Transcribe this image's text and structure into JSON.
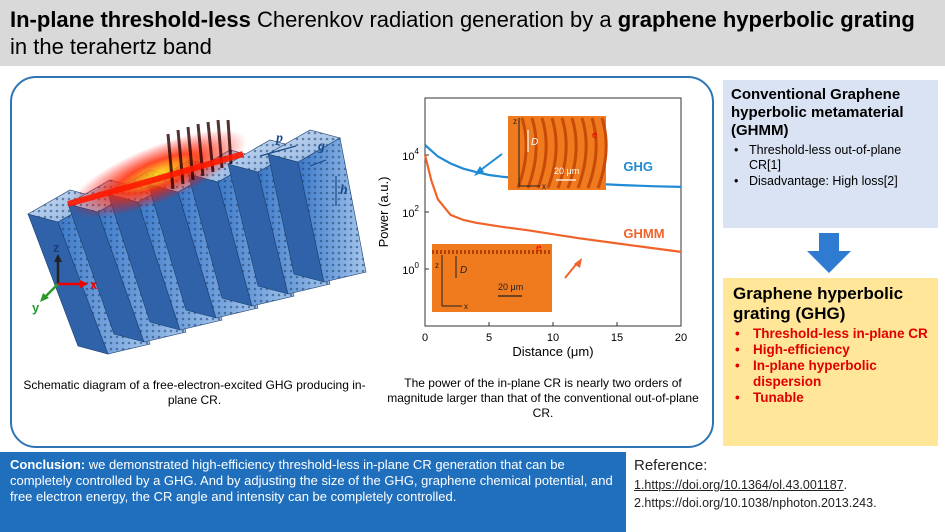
{
  "title": {
    "bold1": "In-plane threshold-less",
    "normal1": " Cherenkov radiation generation by a ",
    "bold2": "graphene hyperbolic grating",
    "normal2": " in the terahertz band"
  },
  "figure_left": {
    "labels": {
      "p": "p",
      "g": "g",
      "h": "h",
      "z": "z",
      "x": "x",
      "y": "y"
    },
    "caption": "Schematic diagram of a free-electron-excited GHG producing in-plane CR."
  },
  "figure_right": {
    "caption": "The power of the in-plane CR is nearly two orders of magnitude larger than that of the conventional out-of-plane CR."
  },
  "chart_data": {
    "type": "line",
    "xlabel": "Distance (μm)",
    "ylabel": "Power (a.u.)",
    "xlim": [
      0,
      20
    ],
    "ylim_log10": [
      -2,
      6
    ],
    "x_ticks": [
      "0",
      "5",
      "10",
      "15",
      "20"
    ],
    "y_ticks": [
      {
        "exp": 4,
        "label": "10",
        "sup": "4"
      },
      {
        "exp": 2,
        "label": "10",
        "sup": "2"
      },
      {
        "exp": 0,
        "label": "10",
        "sup": "0"
      }
    ],
    "series": [
      {
        "name": "GHG",
        "color": "#1f8ad6",
        "x": [
          0,
          0.5,
          1,
          2,
          3,
          4,
          5,
          6,
          8,
          10,
          12,
          15,
          18,
          20
        ],
        "log10_y": [
          4.35,
          4.15,
          3.95,
          3.7,
          3.52,
          3.4,
          3.3,
          3.24,
          3.15,
          3.08,
          3.02,
          2.95,
          2.9,
          2.88
        ]
      },
      {
        "name": "GHMM",
        "color": "#f0632a",
        "x": [
          0,
          0.5,
          1,
          2,
          3,
          4,
          5,
          6,
          8,
          10,
          12,
          15,
          18,
          20
        ],
        "log10_y": [
          4.0,
          3.1,
          2.45,
          1.9,
          1.72,
          1.62,
          1.55,
          1.48,
          1.36,
          1.22,
          1.08,
          0.9,
          0.72,
          0.6
        ]
      }
    ],
    "inset_top": {
      "labels": [
        "z",
        "x",
        "D",
        "20 μm",
        "e"
      ]
    },
    "inset_bottom": {
      "labels": [
        "z",
        "x",
        "D",
        "20 μm",
        "e"
      ]
    }
  },
  "conventional": {
    "title": "Conventional Graphene hyperbolic metamaterial (GHMM)",
    "items": [
      "Threshold-less out-of-plane CR[1]",
      "Disadvantage:  High loss[2]"
    ]
  },
  "ghg": {
    "title": "Graphene hyperbolic grating (GHG)",
    "items": [
      "Threshold-less in-plane CR",
      "High-efficiency",
      "In-plane hyperbolic dispersion",
      "Tunable"
    ]
  },
  "conclusion": {
    "label": "Conclusion:",
    "text": " we demonstrated high-efficiency threshold-less in-plane CR generation that can be completely controlled by a GHG. And by adjusting the size of the GHG, graphene chemical potential, and free electron energy, the CR angle and intensity can be completely controlled."
  },
  "reference": {
    "head": "Reference:",
    "ref1": "1.https://doi.org/10.1364/ol.43.001187",
    "ref1_tail": ".",
    "ref2": "2.https://doi.org/10.1038/nphoton.2013.243."
  },
  "colors": {
    "blue": "#1f6fbd",
    "panel_border": "#2e75b6",
    "ghg": "#1f8ad6",
    "ghmm": "#f0632a",
    "red": "#e00000"
  }
}
